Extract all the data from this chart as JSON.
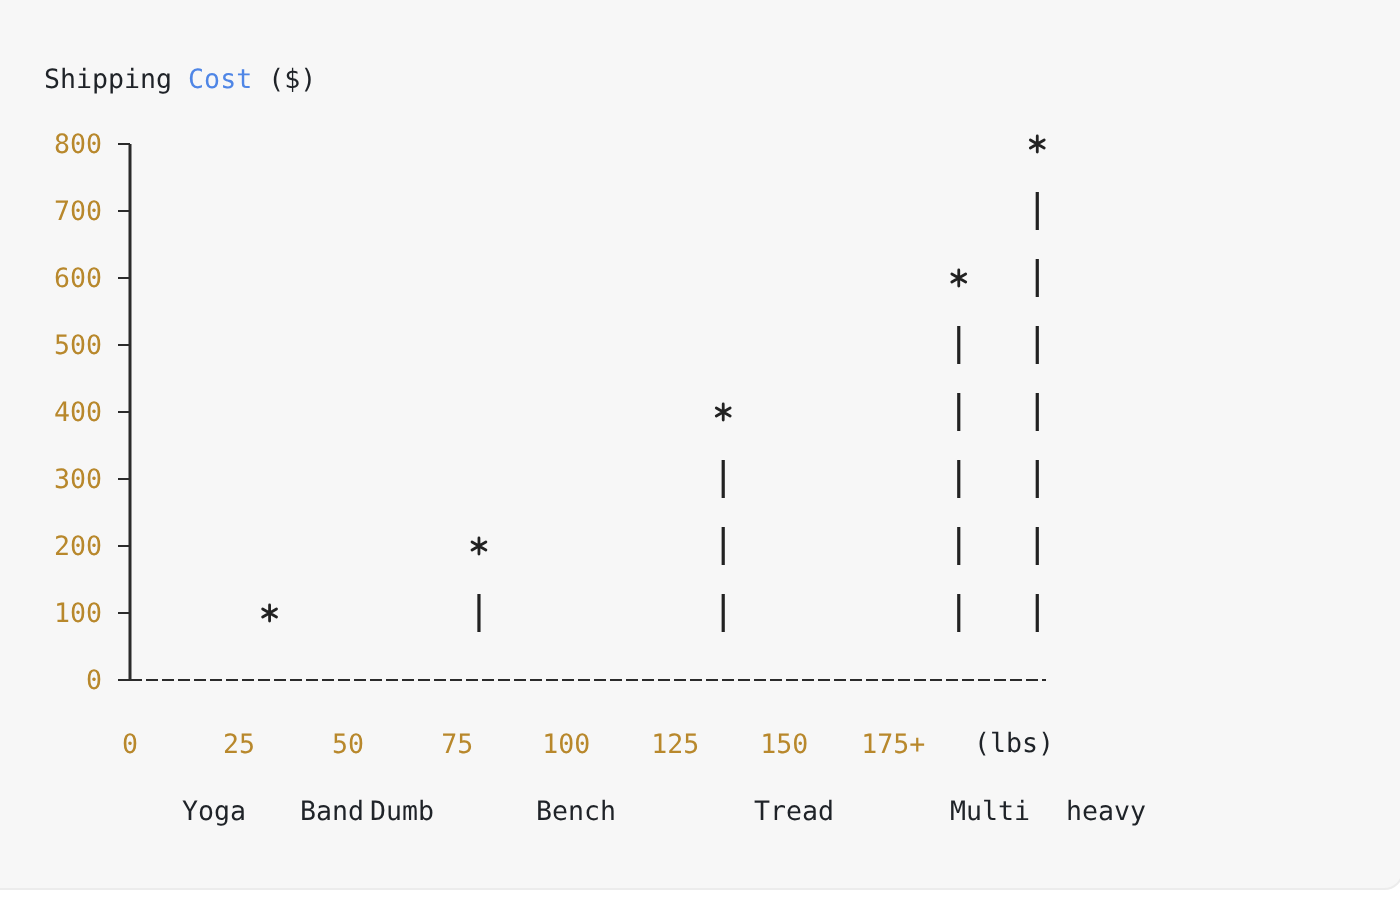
{
  "chart_data": {
    "type": "lollipop",
    "ylabel": "Shipping Cost ($)",
    "xlabel": "(lbs)",
    "x": [
      32,
      80,
      136,
      190,
      208
    ],
    "values": [
      100,
      200,
      400,
      600,
      800
    ],
    "color": "#222222",
    "xlim": [
      0,
      210
    ],
    "xticks": [
      0,
      25,
      50,
      75,
      100,
      125,
      150,
      {
        "value": 175,
        "label": "175+"
      }
    ],
    "ylim": [
      0,
      800
    ],
    "yticks": [
      0,
      100,
      200,
      300,
      400,
      500,
      600,
      700,
      800
    ],
    "marker": "cross",
    "line_style": "dashed",
    "annotations": [
      "Yoga",
      "Band",
      "Dumb",
      "Bench",
      "Tread",
      "Multi",
      "heavy"
    ]
  }
}
